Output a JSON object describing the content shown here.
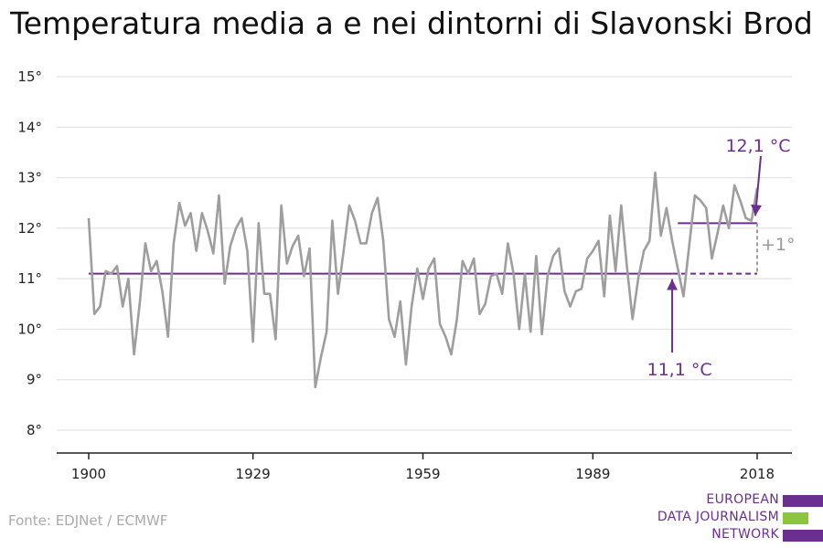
{
  "title": "Temperatura media a e nei dintorni di Slavonski Brod",
  "source": "Fonte: EDJNet / ECMWF",
  "logo": {
    "lines": [
      "EUROPEAN",
      "DATA JOURNALISM",
      "NETWORK"
    ],
    "colors": [
      "#6b2f8f",
      "#8cc63f",
      "#6b2f8f"
    ]
  },
  "colors": {
    "series": "#9e9e9e",
    "baseline": "#6b2f8f",
    "axis": "#222222",
    "grid": "#dddddd",
    "tick_label": "#222222",
    "diff_label": "#999999"
  },
  "chart_data": {
    "type": "line",
    "title": "Temperatura media a e nei dintorni di Slavonski Brod",
    "xlabel": "",
    "ylabel": "",
    "xlim": [
      1900,
      2018
    ],
    "ylim": [
      8,
      15
    ],
    "yticks": [
      8,
      9,
      10,
      11,
      12,
      13,
      14,
      15
    ],
    "ytick_labels": [
      "8°",
      "9°",
      "10°",
      "11°",
      "12°",
      "13°",
      "14°",
      "15°"
    ],
    "xticks": [
      1900,
      1929,
      1959,
      1989,
      2018
    ],
    "xtick_labels": [
      "1900",
      "1929",
      "1959",
      "1989",
      "2018"
    ],
    "grid": true,
    "series": [
      {
        "x": [
          1900,
          1901,
          1902,
          1903,
          1904,
          1905,
          1906,
          1907,
          1908,
          1909,
          1910,
          1911,
          1912,
          1913,
          1914,
          1915,
          1916,
          1917,
          1918,
          1919,
          1920,
          1921,
          1922,
          1923,
          1924,
          1925,
          1926,
          1927,
          1928,
          1929,
          1930,
          1931,
          1932,
          1933,
          1934,
          1935,
          1936,
          1937,
          1938,
          1939,
          1940,
          1941,
          1942,
          1943,
          1944,
          1945,
          1946,
          1947,
          1948,
          1949,
          1950,
          1951,
          1952,
          1953,
          1954,
          1955,
          1956,
          1957,
          1958,
          1959,
          1960,
          1961,
          1962,
          1963,
          1964,
          1965,
          1966,
          1967,
          1968,
          1969,
          1970,
          1971,
          1972,
          1973,
          1974,
          1975,
          1976,
          1977,
          1978,
          1979,
          1980,
          1981,
          1982,
          1983,
          1984,
          1985,
          1986,
          1987,
          1988,
          1989,
          1990,
          1991,
          1992,
          1993,
          1994,
          1995,
          1996,
          1997,
          1998,
          1999,
          2000,
          2001,
          2002,
          2003,
          2004,
          2005,
          2006,
          2007,
          2008,
          2009,
          2010,
          2011,
          2012,
          2013,
          2014,
          2015,
          2016,
          2017,
          2018
        ],
        "y": [
          12.2,
          10.3,
          10.45,
          11.15,
          11.1,
          11.25,
          10.45,
          11.0,
          9.5,
          10.5,
          11.7,
          11.15,
          11.35,
          10.75,
          9.85,
          11.7,
          12.5,
          12.05,
          12.3,
          11.55,
          12.3,
          11.95,
          11.5,
          12.65,
          10.9,
          11.65,
          12.0,
          12.2,
          11.55,
          9.75,
          12.1,
          10.7,
          10.7,
          9.8,
          12.45,
          11.3,
          11.65,
          11.85,
          11.05,
          11.6,
          8.85,
          9.45,
          9.95,
          12.15,
          10.7,
          11.55,
          12.45,
          12.15,
          11.7,
          11.7,
          12.3,
          12.6,
          11.75,
          10.2,
          9.85,
          10.55,
          9.3,
          10.45,
          11.2,
          10.6,
          11.2,
          11.4,
          10.1,
          9.85,
          9.5,
          10.2,
          11.35,
          11.1,
          11.4,
          10.3,
          10.5,
          11.05,
          11.1,
          10.7,
          11.7,
          11.1,
          10.0,
          11.1,
          9.95,
          11.45,
          9.9,
          11.05,
          11.45,
          11.6,
          10.75,
          10.45,
          10.75,
          10.8,
          11.4,
          11.55,
          11.75,
          10.65,
          12.25,
          11.15,
          12.45,
          11.25,
          10.2,
          11.0,
          11.55,
          11.75,
          13.1,
          11.85,
          12.4,
          11.75,
          11.2,
          10.65,
          11.65,
          12.65,
          12.55,
          12.4,
          11.4,
          11.9,
          12.45,
          12.0,
          12.85,
          12.55,
          12.2,
          12.15,
          12.8
        ]
      }
    ],
    "reference_lines": [
      {
        "label": "11,1 °C",
        "value": 11.1,
        "x_start": 1900,
        "x_end": 2018,
        "dashed_from": 2003
      },
      {
        "label": "12,1 °C",
        "value": 12.1,
        "x_start": 2004,
        "x_end": 2018
      }
    ],
    "difference_label": "+1°"
  }
}
